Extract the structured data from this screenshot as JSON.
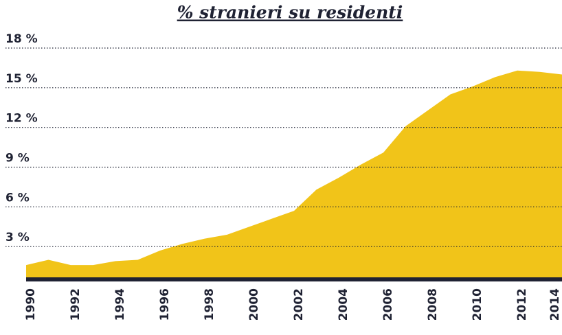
{
  "chart_data": {
    "type": "area",
    "title": "% stranieri su residenti",
    "x": [
      1990,
      1991,
      1992,
      1993,
      1994,
      1995,
      1996,
      1997,
      1998,
      1999,
      2000,
      2001,
      2002,
      2003,
      2004,
      2005,
      2006,
      2007,
      2008,
      2009,
      2010,
      2011,
      2012,
      2013,
      2014
    ],
    "series": [
      {
        "name": "% stranieri su residenti",
        "color": "#f1c419",
        "values": [
          1.6,
          2.0,
          1.6,
          1.6,
          1.9,
          2.0,
          2.7,
          3.2,
          3.6,
          3.9,
          4.5,
          5.1,
          5.7,
          7.3,
          8.2,
          9.2,
          10.1,
          12.1,
          13.3,
          14.5,
          15.1,
          15.8,
          16.3,
          16.2,
          16.0
        ]
      }
    ],
    "xlim": [
      1990,
      2014
    ],
    "xticks": [
      1990,
      1992,
      1994,
      1996,
      1998,
      2000,
      2002,
      2004,
      2006,
      2008,
      2010,
      2012,
      2014
    ],
    "ylim": [
      0,
      18
    ],
    "yticks": [
      {
        "value": 3,
        "label": "3 %"
      },
      {
        "value": 6,
        "label": "6 %"
      },
      {
        "value": 9,
        "label": "9 %"
      },
      {
        "value": 12,
        "label": "12 %"
      },
      {
        "value": 15,
        "label": "15 %"
      },
      {
        "value": 18,
        "label": "18 %"
      }
    ],
    "grid": true
  }
}
